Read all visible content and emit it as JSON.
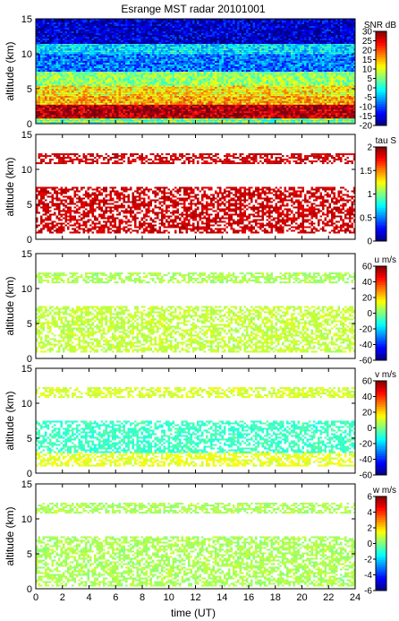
{
  "chart_data": {
    "type": "heatmap",
    "title": "Esrange MST radar 20101001",
    "xlabel": "time (UT)",
    "x_ticks": [
      "0",
      "2",
      "4",
      "6",
      "8",
      "10",
      "12",
      "14",
      "16",
      "18",
      "20",
      "22",
      "24"
    ],
    "xlim": [
      0,
      24
    ],
    "panels": [
      {
        "ylabel": "altitude (km)",
        "ylim": [
          0,
          15
        ],
        "y_ticks": [
          "0",
          "5",
          "10",
          "15"
        ],
        "colorbar_label": "SNR dB",
        "colorbar_range": [
          -20,
          30
        ],
        "colorbar_ticks": [
          "30",
          "25",
          "20",
          "15",
          "10",
          "5",
          "0",
          "-5",
          "-10",
          "-15",
          "-20"
        ],
        "layers": [
          {
            "alt_range": [
              0,
              1
            ],
            "level": 5
          },
          {
            "alt_range": [
              1,
              2.8
            ],
            "level": 27
          },
          {
            "alt_range": [
              2.8,
              4
            ],
            "level": 15
          },
          {
            "alt_range": [
              4,
              5.5
            ],
            "level": 12
          },
          {
            "alt_range": [
              5.5,
              7.5
            ],
            "level": 6
          },
          {
            "alt_range": [
              7.5,
              10
            ],
            "level": -8
          },
          {
            "alt_range": [
              10,
              11.5
            ],
            "level": -2
          },
          {
            "alt_range": [
              11.5,
              15
            ],
            "level": -16
          }
        ]
      },
      {
        "ylabel": "altitude (km)",
        "ylim": [
          0,
          15
        ],
        "y_ticks": [
          "0",
          "5",
          "10",
          "15"
        ],
        "colorbar_label": "tau S",
        "colorbar_range": [
          0,
          2
        ],
        "colorbar_ticks": [
          "2",
          "1.5",
          "1",
          "0.5",
          "0"
        ],
        "layers": [
          {
            "alt_range": [
              1,
              7.5
            ],
            "level": 1.85
          },
          {
            "alt_range": [
              11,
              12.3
            ],
            "level": 1.85
          }
        ]
      },
      {
        "ylabel": "altitude (km)",
        "ylim": [
          0,
          15
        ],
        "y_ticks": [
          "0",
          "5",
          "10",
          "15"
        ],
        "colorbar_label": "u m/s",
        "colorbar_range": [
          -60,
          60
        ],
        "colorbar_ticks": [
          "60",
          "40",
          "20",
          "0",
          "-20",
          "-40",
          "-60"
        ],
        "layers": [
          {
            "alt_range": [
              1,
              7.5
            ],
            "level": 8
          },
          {
            "alt_range": [
              11,
              12.3
            ],
            "level": 5
          }
        ]
      },
      {
        "ylabel": "altitude (km)",
        "ylim": [
          0,
          15
        ],
        "y_ticks": [
          "0",
          "5",
          "10",
          "15"
        ],
        "colorbar_label": "v m/s",
        "colorbar_range": [
          -60,
          60
        ],
        "colorbar_ticks": [
          "60",
          "40",
          "20",
          "0",
          "-20",
          "-40",
          "-60"
        ],
        "layers": [
          {
            "alt_range": [
              1,
              3
            ],
            "level": 12
          },
          {
            "alt_range": [
              3,
              7.5
            ],
            "level": -8
          },
          {
            "alt_range": [
              11,
              12.3
            ],
            "level": 10
          }
        ]
      },
      {
        "ylabel": "altitude (km)",
        "ylim": [
          0,
          15
        ],
        "y_ticks": [
          "0",
          "5",
          "10",
          "15"
        ],
        "colorbar_label": "w m/s",
        "colorbar_range": [
          -6,
          6
        ],
        "colorbar_ticks": [
          "6",
          "4",
          "2",
          "0",
          "-2",
          "-4",
          "-6"
        ],
        "layers": [
          {
            "alt_range": [
              0.5,
              7.5
            ],
            "level": 0.5
          },
          {
            "alt_range": [
              11,
              12.3
            ],
            "level": 0.5
          }
        ]
      }
    ]
  }
}
